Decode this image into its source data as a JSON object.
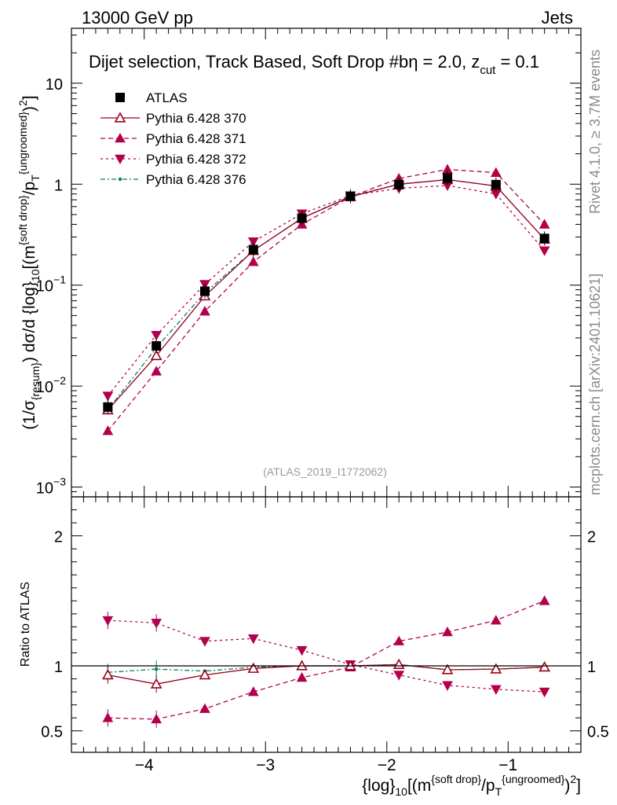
{
  "header": {
    "left": "13000 GeV pp",
    "right": "Jets"
  },
  "side_labels": {
    "rivet": "Rivet 4.1.0, ≥ 3.7M events",
    "mcplots": "mcplots.cern.ch [arXiv:2401.10621]"
  },
  "plot_title": {
    "main": "Dijet selection, Track Based, Soft Drop #b",
    "eta": "η = 2.0, z",
    "cut_sub": "cut",
    "cut_val": " = 0.1"
  },
  "watermark": "(ATLAS_2019_I1772062)",
  "ylabel_main": {
    "p1": "(1/σ",
    "sub1": "{resum}",
    "p2": ") dσ/d {log}",
    "sub2": "10",
    "p3": "[(m",
    "sup1": "{soft drop}",
    "p4": "/p",
    "sub3": "T",
    "sup2": "{ungroomed}",
    "p5": ")",
    "sup3": "2",
    "p6": "]"
  },
  "ylabel_ratio": "Ratio to ATLAS",
  "xlabel": {
    "p1": "{log}",
    "sub1": "10",
    "p2": "[(m",
    "sup1": "{soft drop}",
    "p3": "/p",
    "sub2": "T",
    "sup2": "{ungroomed}",
    "p4": ")",
    "sup3": "2",
    "p5": "]"
  },
  "colors": {
    "atlas": "#000000",
    "p370": "#99001a",
    "p371": "#b3004d",
    "p372": "#b3004d",
    "p376": "#008066"
  },
  "chart_data": [
    {
      "type": "line",
      "panel": "main",
      "yscale": "log",
      "xlim": [
        -4.6,
        -0.4
      ],
      "ylim": [
        0.0008,
        35
      ],
      "x_ticks": [
        -4,
        -3,
        -2,
        -1
      ],
      "y_tick_labels": [
        {
          "value": 10,
          "base": "10",
          "exp": ""
        },
        {
          "value": 1,
          "base": "1",
          "exp": ""
        },
        {
          "value": 0.1,
          "base": "10",
          "exp": "−1"
        },
        {
          "value": 0.01,
          "base": "10",
          "exp": "−2"
        },
        {
          "value": 0.001,
          "base": "10",
          "exp": "−3"
        }
      ],
      "x": [
        -4.3,
        -3.9,
        -3.5,
        -3.1,
        -2.7,
        -2.3,
        -1.9,
        -1.5,
        -1.1,
        -0.7
      ],
      "series": [
        {
          "name": "ATLAS",
          "key": "atlas",
          "marker": "square",
          "values": [
            0.0062,
            0.025,
            0.087,
            0.225,
            0.46,
            0.76,
            0.99,
            1.15,
            0.99,
            0.29
          ]
        },
        {
          "name": "Pythia 6.428 370",
          "key": "p370",
          "marker": "triangle-up-open",
          "values": [
            0.0058,
            0.02,
            0.078,
            0.22,
            0.46,
            0.75,
            1.0,
            1.11,
            0.96,
            0.285
          ]
        },
        {
          "name": "Pythia 6.428 371",
          "key": "p371",
          "marker": "triangle-up",
          "values": [
            0.0036,
            0.014,
            0.055,
            0.17,
            0.4,
            0.75,
            1.14,
            1.4,
            1.3,
            0.4
          ]
        },
        {
          "name": "Pythia 6.428 372",
          "key": "p372",
          "marker": "triangle-down",
          "values": [
            0.008,
            0.032,
            0.102,
            0.27,
            0.51,
            0.77,
            0.91,
            0.97,
            0.8,
            0.22
          ]
        },
        {
          "name": "Pythia 6.428 376",
          "key": "p376",
          "marker": "dot",
          "values": [
            0.0058,
            0.024,
            0.084,
            0.22,
            0.46,
            0.76,
            1.0,
            1.11,
            0.96,
            0.285
          ]
        }
      ]
    },
    {
      "type": "line",
      "panel": "ratio",
      "yscale": "linear",
      "xlim": [
        -4.6,
        -0.4
      ],
      "ylim": [
        0.335,
        2.3
      ],
      "y_ticks": [
        0.5,
        1,
        2
      ],
      "x": [
        -4.3,
        -3.9,
        -3.5,
        -3.1,
        -2.7,
        -2.3,
        -1.9,
        -1.5,
        -1.1,
        -0.7
      ],
      "series": [
        {
          "name": "ATLAS",
          "key": "atlas",
          "values": [
            1,
            1,
            1,
            1,
            1,
            1,
            1,
            1,
            1,
            1
          ]
        },
        {
          "name": "Pythia 6.428 370",
          "key": "p370",
          "values": [
            0.93,
            0.86,
            0.93,
            0.98,
            1.0,
            1.0,
            1.01,
            0.97,
            0.975,
            0.99
          ]
        },
        {
          "name": "Pythia 6.428 371",
          "key": "p371",
          "values": [
            0.6,
            0.59,
            0.67,
            0.8,
            0.91,
            0.99,
            1.19,
            1.26,
            1.35,
            1.5
          ]
        },
        {
          "name": "Pythia 6.428 372",
          "key": "p372",
          "values": [
            1.35,
            1.33,
            1.19,
            1.21,
            1.12,
            1.01,
            0.93,
            0.85,
            0.82,
            0.8
          ]
        },
        {
          "name": "Pythia 6.428 376",
          "key": "p376",
          "values": [
            0.95,
            0.975,
            0.96,
            0.99,
            1.0,
            1.0,
            1.01,
            0.97,
            0.975,
            0.99
          ]
        }
      ]
    }
  ]
}
